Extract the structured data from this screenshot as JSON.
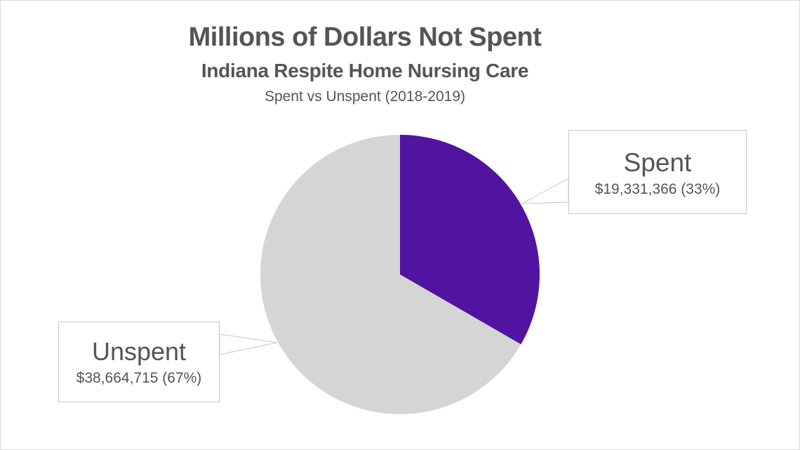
{
  "chart_data": {
    "type": "pie",
    "title": "Millions of Dollars Not Spent",
    "subtitle": "Indiana Respite Home Nursing Care",
    "caption": "Spent vs Unspent (2018-2019)",
    "slices": [
      {
        "label": "Spent",
        "value": 19331366,
        "value_label": "$19,331,366 (33%)",
        "percent": 33,
        "color": "#5114a0"
      },
      {
        "label": "Unspent",
        "value": 38664715,
        "value_label": "$38,664,715 (67%)",
        "percent": 67,
        "color": "#d6d5d5"
      }
    ],
    "legend": "callouts"
  }
}
